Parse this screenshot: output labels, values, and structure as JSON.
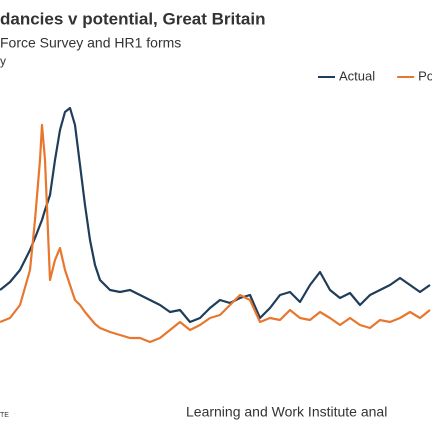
{
  "chart_data": {
    "type": "line",
    "title": "dancies v potential, Great Britain",
    "subtitle": "Force Survey and HR1 forms",
    "y_label": "y",
    "source": "Learning and Work Institute anal",
    "footnote": "TE",
    "x": [
      0,
      10,
      20,
      30,
      35,
      40,
      42,
      45,
      50,
      55,
      60,
      65,
      70,
      75,
      80,
      85,
      90,
      95,
      100,
      110,
      120,
      130,
      140,
      150,
      160,
      170,
      180,
      190,
      200,
      210,
      220,
      230,
      240,
      250,
      260,
      270,
      280,
      290,
      300,
      310,
      320,
      330,
      340,
      350,
      360,
      370,
      380,
      390,
      400,
      410,
      420,
      430
    ],
    "xlim": [
      0,
      432
    ],
    "ylim": [
      0,
      340
    ],
    "series": [
      {
        "name": "Actual",
        "color": "#1f3d5a",
        "values": [
          110,
          118,
          130,
          150,
          162,
          175,
          180,
          190,
          205,
          240,
          270,
          288,
          292,
          275,
          235,
          195,
          160,
          135,
          120,
          110,
          108,
          110,
          105,
          100,
          95,
          88,
          90,
          78,
          82,
          92,
          100,
          97,
          102,
          105,
          82,
          92,
          105,
          108,
          98,
          115,
          128,
          110,
          102,
          107,
          95,
          105,
          110,
          115,
          122,
          115,
          108,
          115
        ]
      },
      {
        "name": "Potential",
        "color": "#e8772e",
        "values": [
          78,
          82,
          95,
          130,
          180,
          240,
          275,
          240,
          120,
          140,
          152,
          130,
          115,
          100,
          95,
          88,
          82,
          76,
          72,
          68,
          65,
          62,
          62,
          58,
          62,
          70,
          78,
          70,
          75,
          82,
          85,
          95,
          105,
          100,
          78,
          82,
          80,
          90,
          82,
          80,
          88,
          82,
          75,
          82,
          75,
          72,
          80,
          78,
          82,
          88,
          82,
          90
        ]
      }
    ],
    "legend": "top-right"
  }
}
